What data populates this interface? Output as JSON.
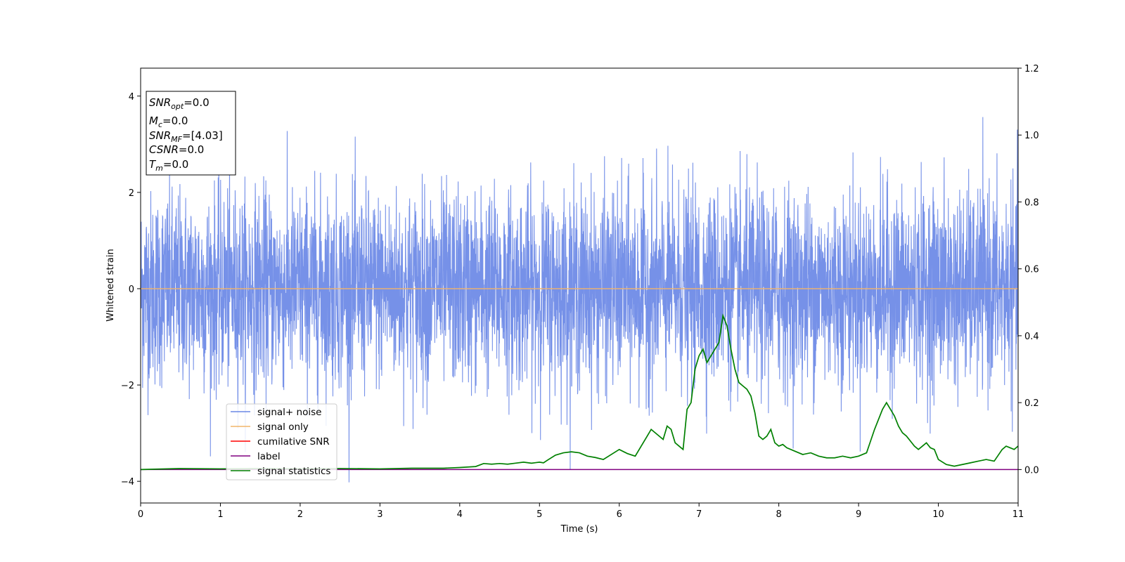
{
  "chart_data": {
    "type": "line",
    "xlabel": "Time (s)",
    "ylabel": "Whitened strain",
    "xlim": [
      0,
      11
    ],
    "ylim_left": [
      -4.45,
      4.58
    ],
    "ylim_right": [
      -0.1,
      1.2
    ],
    "x_ticks": [
      "0",
      "1",
      "2",
      "3",
      "4",
      "5",
      "6",
      "7",
      "8",
      "9",
      "10",
      "11"
    ],
    "y_ticks_left": [
      "−4",
      "−2",
      "0",
      "2",
      "4"
    ],
    "y_ticks_right": [
      "0.0",
      "0.2",
      "0.4",
      "0.6",
      "0.8",
      "1.0",
      "1.2"
    ],
    "legend_position": "lower-left",
    "legend": [
      "signal+ noise",
      "signal only",
      "cumilative SNR",
      "label",
      "signal statistics"
    ],
    "colors": {
      "signal_noise": "#6a88e6",
      "signal_only": "#f2b56a",
      "cumulative_snr": "#ff0000",
      "label": "#800080",
      "signal_statistics": "#008000"
    },
    "info_box": {
      "snr_opt_sym": "SNR",
      "snr_opt_sub": "opt",
      "snr_opt_val": "=0.0",
      "mc_sym": "M",
      "mc_sub": "c",
      "mc_val": "=0.0",
      "snr_mf_sym": "SNR",
      "snr_mf_sub": "MF",
      "snr_mf_val": "=[4.03]",
      "csnr_sym": "CSNR",
      "csnr_val": "=0.0",
      "tm_sym": "T",
      "tm_sub": "m",
      "tm_val": "=0.0"
    },
    "series": [
      {
        "name": "signal+ noise",
        "axis": "left",
        "description_type": "noise",
        "sample_rate_hz": 400,
        "duration_s": 11,
        "std": 1.0
      },
      {
        "name": "signal only",
        "axis": "left",
        "x": [
          0,
          11
        ],
        "y": [
          0,
          0
        ]
      },
      {
        "name": "label",
        "axis": "right",
        "x": [
          0,
          11
        ],
        "y": [
          0,
          0
        ]
      },
      {
        "name": "signal statistics",
        "axis": "right",
        "x": [
          0,
          0.5,
          1,
          1.5,
          2,
          2.5,
          3,
          3.4,
          3.8,
          4.0,
          4.2,
          4.3,
          4.4,
          4.5,
          4.6,
          4.7,
          4.8,
          4.9,
          5.0,
          5.05,
          5.1,
          5.2,
          5.3,
          5.4,
          5.5,
          5.6,
          5.7,
          5.8,
          5.9,
          6.0,
          6.1,
          6.2,
          6.3,
          6.35,
          6.4,
          6.45,
          6.5,
          6.55,
          6.6,
          6.65,
          6.7,
          6.75,
          6.8,
          6.85,
          6.9,
          6.95,
          7.0,
          7.05,
          7.1,
          7.15,
          7.2,
          7.25,
          7.3,
          7.35,
          7.4,
          7.45,
          7.5,
          7.55,
          7.6,
          7.65,
          7.7,
          7.75,
          7.8,
          7.85,
          7.9,
          7.95,
          8.0,
          8.05,
          8.1,
          8.2,
          8.3,
          8.4,
          8.5,
          8.6,
          8.7,
          8.8,
          8.9,
          9.0,
          9.1,
          9.2,
          9.3,
          9.35,
          9.4,
          9.45,
          9.5,
          9.55,
          9.6,
          9.7,
          9.75,
          9.8,
          9.85,
          9.9,
          9.95,
          10.0,
          10.1,
          10.2,
          10.3,
          10.4,
          10.5,
          10.6,
          10.7,
          10.8,
          10.85,
          10.9,
          10.95,
          11.0
        ],
        "y": [
          0.0,
          0.003,
          0.002,
          0.003,
          0.002,
          0.003,
          0.002,
          0.004,
          0.004,
          0.006,
          0.009,
          0.018,
          0.016,
          0.018,
          0.016,
          0.019,
          0.022,
          0.019,
          0.022,
          0.02,
          0.028,
          0.043,
          0.05,
          0.053,
          0.05,
          0.04,
          0.036,
          0.03,
          0.045,
          0.06,
          0.048,
          0.04,
          0.08,
          0.1,
          0.12,
          0.11,
          0.1,
          0.09,
          0.13,
          0.12,
          0.08,
          0.07,
          0.06,
          0.18,
          0.2,
          0.3,
          0.34,
          0.36,
          0.32,
          0.34,
          0.36,
          0.38,
          0.46,
          0.43,
          0.36,
          0.3,
          0.26,
          0.25,
          0.24,
          0.22,
          0.17,
          0.1,
          0.09,
          0.1,
          0.12,
          0.08,
          0.07,
          0.075,
          0.065,
          0.055,
          0.045,
          0.05,
          0.04,
          0.035,
          0.035,
          0.04,
          0.035,
          0.04,
          0.05,
          0.12,
          0.18,
          0.2,
          0.18,
          0.16,
          0.13,
          0.11,
          0.1,
          0.07,
          0.06,
          0.07,
          0.08,
          0.065,
          0.06,
          0.03,
          0.015,
          0.01,
          0.015,
          0.02,
          0.025,
          0.03,
          0.025,
          0.06,
          0.07,
          0.065,
          0.06,
          0.07
        ]
      }
    ]
  }
}
